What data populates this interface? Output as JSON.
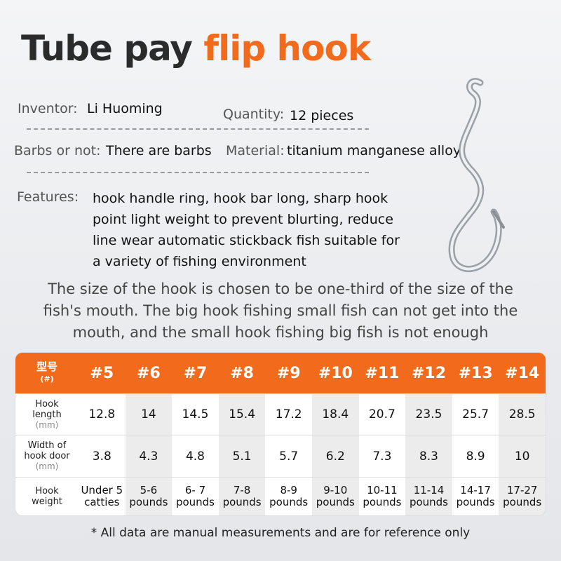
{
  "title": {
    "dark": "Tube pay",
    "accent": "flip hook"
  },
  "specs": [
    {
      "label": "Inventor:",
      "value": "Li Huoming"
    },
    {
      "label": "Quantity:",
      "value": "12 pieces"
    },
    {
      "label": "Barbs or not:",
      "value": "There are barbs"
    },
    {
      "label": "Material:",
      "value": "titanium manganese alloy"
    }
  ],
  "features": {
    "label": "Features:",
    "lines": [
      "hook handle ring, hook bar long, sharp hook",
      "point light weight to prevent blurting, reduce",
      "line wear automatic stickback fish suitable for",
      "a variety of fishing environment"
    ]
  },
  "note": [
    "The size of the hook is chosen to be one-third of the size of the",
    "fish's mouth. The big hook fishing small fish can not get into the",
    "mouth, and the small hook fishing big fish is not enough"
  ],
  "table": {
    "header": {
      "label": "型号",
      "unit": "(#)",
      "cells": [
        "#5",
        "#6",
        "#7",
        "#8",
        "#9",
        "#10",
        "#11",
        "#12",
        "#13",
        "#14"
      ]
    },
    "rows": [
      {
        "label": "Hook length",
        "unit": "(mm)",
        "cells": [
          "12.8",
          "14",
          "14.5",
          "15.4",
          "17.2",
          "18.4",
          "20.7",
          "23.5",
          "25.7",
          "28.5"
        ]
      },
      {
        "label": "Width of hook door",
        "unit": "(mm)",
        "cells": [
          "3.8",
          "4.3",
          "4.8",
          "5.1",
          "5.7",
          "6.2",
          "7.3",
          "8.3",
          "8.9",
          "10"
        ]
      },
      {
        "label": "Hook weight",
        "cells": [
          "Under 5 catties",
          "5-6 pounds",
          "6- 7 pounds",
          "7-8 pounds",
          "8-9 pounds",
          "9-10 pounds",
          "10-11 pounds",
          "11-14 pounds",
          "14-17 pounds",
          "17-27 pounds"
        ]
      }
    ]
  },
  "footnote": "* All data are manual measurements and are for reference only"
}
